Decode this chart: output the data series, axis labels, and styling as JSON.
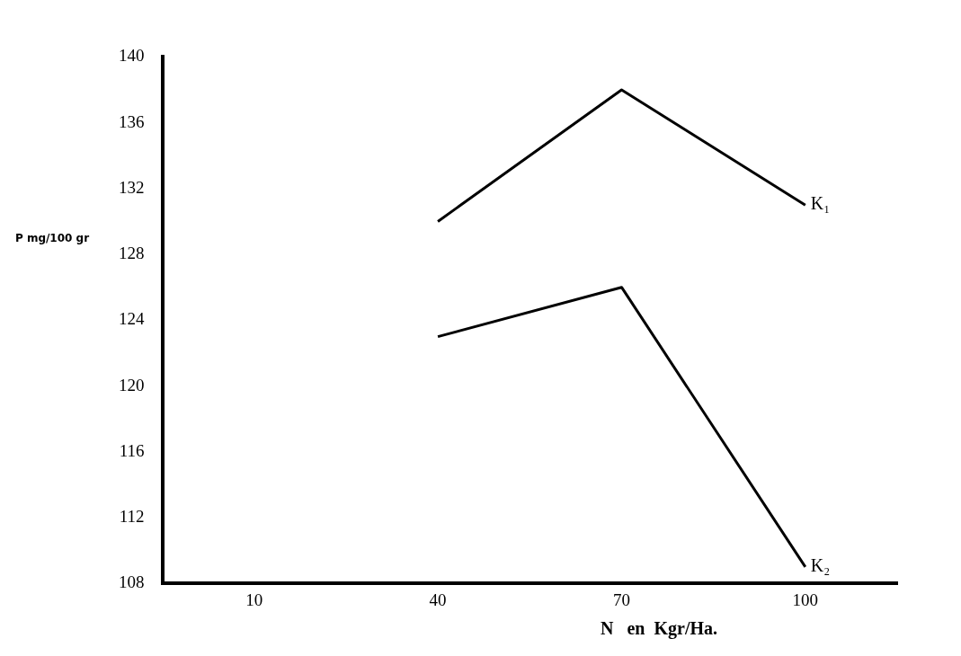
{
  "chart_data": {
    "type": "line",
    "xlabel": "N   en  Kgr/Ha.",
    "ylabel": "P mg/100 gr",
    "categories": [
      "10",
      "40",
      "70",
      "100"
    ],
    "series": [
      {
        "name": "K₁",
        "color": "#000000",
        "values": [
          null,
          130,
          138,
          131
        ]
      },
      {
        "name": "K₂",
        "color": "#000000",
        "values": [
          null,
          123,
          126,
          109
        ]
      }
    ],
    "ylim": [
      108,
      140
    ],
    "yticks": [
      108,
      112,
      116,
      120,
      124,
      128,
      132,
      136,
      140
    ],
    "grid": false,
    "legend": false,
    "marker": "none",
    "line_style": "solid"
  }
}
